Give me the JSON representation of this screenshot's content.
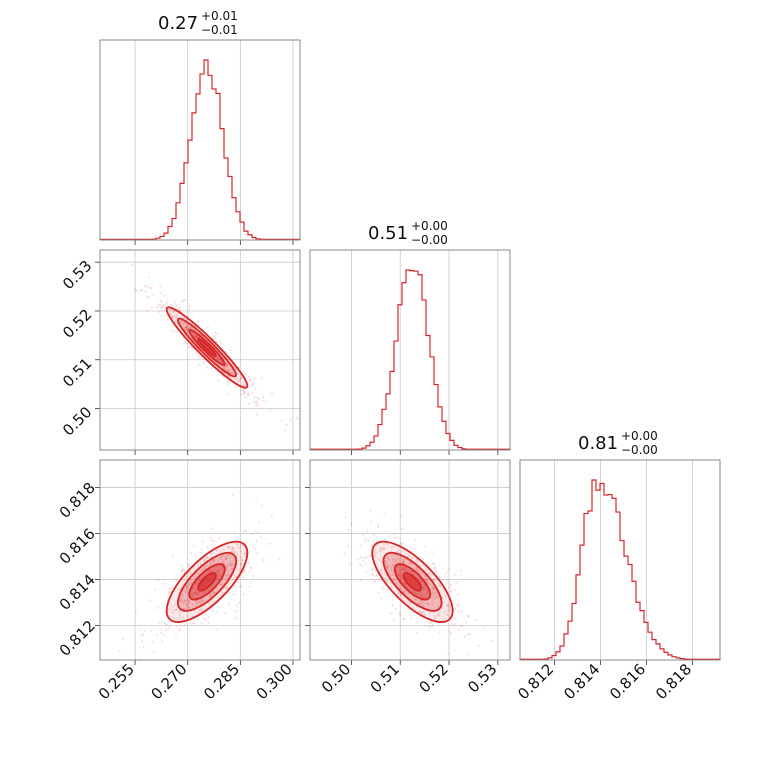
{
  "chart_data": {
    "type": "corner",
    "color": "#d62728",
    "parameters": [
      {
        "title_value": "0.27",
        "title_plus": "+0.01",
        "title_minus": "−0.01",
        "range": [
          0.245,
          0.302
        ],
        "ticks": [
          0.255,
          0.27,
          0.285,
          0.3
        ],
        "tick_labels": [
          "0.255",
          "0.270",
          "0.285",
          "0.300"
        ],
        "mean": 0.2755,
        "std": 0.0046
      },
      {
        "title_value": "0.51",
        "title_plus": "+0.00",
        "title_minus": "−0.00",
        "range": [
          0.4915,
          0.5325
        ],
        "ticks": [
          0.5,
          0.51,
          0.52,
          0.53
        ],
        "tick_labels": [
          "0.50",
          "0.51",
          "0.52",
          "0.53"
        ],
        "mean": 0.5125,
        "std": 0.0033
      },
      {
        "title_value": "0.81",
        "title_plus": "+0.00",
        "title_minus": "−0.00",
        "range": [
          0.8105,
          0.8192
        ],
        "ticks": [
          0.812,
          0.814,
          0.816,
          0.818
        ],
        "tick_labels": [
          "0.812",
          "0.814",
          "0.816",
          "0.818"
        ],
        "mean": 0.8139,
        "std": 0.0007
      }
    ],
    "correlations": {
      "0-1": -0.95,
      "0-2": 0.72,
      "1-2": -0.72
    },
    "grid": true
  }
}
